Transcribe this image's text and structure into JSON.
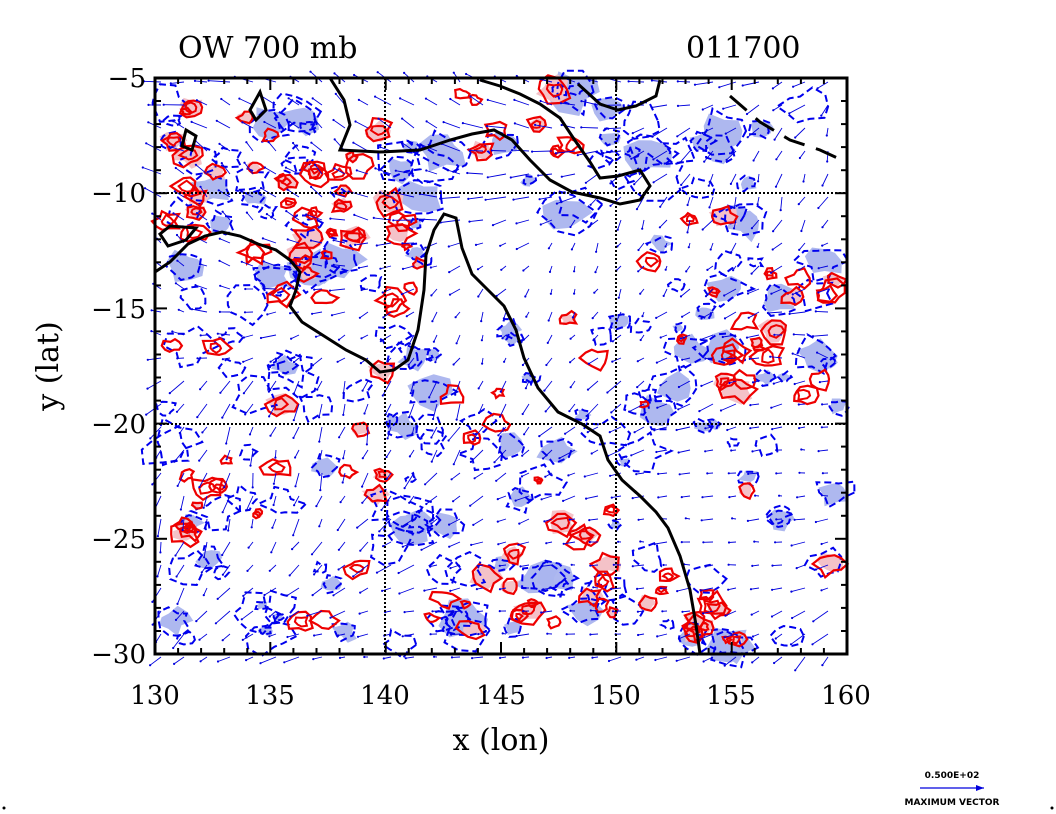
{
  "title_left": "OW 700 mb",
  "title_right": "011700",
  "x_label": "x (lon)",
  "y_label": "y (lat)",
  "x_ticks": [
    "130",
    "135",
    "140",
    "145",
    "150",
    "155",
    "160"
  ],
  "y_ticks": [
    "−5",
    "−10",
    "−15",
    "−20",
    "−25",
    "−30"
  ],
  "legend": {
    "value": "0.500E+02",
    "label": "MAXIMUM VECTOR"
  },
  "map": {
    "lon_range": [
      130,
      160
    ],
    "lat_range": [
      -30,
      -5
    ],
    "grid_lon": [
      140,
      150
    ],
    "grid_lat": [
      -10,
      -20
    ],
    "colors": {
      "positive_contour": "#ee0000",
      "positive_fill": "#f4c2c8",
      "negative_contour": "#0000ee",
      "negative_fill": "#aab4ee",
      "vector": "#0000dd",
      "coastline": "#000000"
    }
  }
}
